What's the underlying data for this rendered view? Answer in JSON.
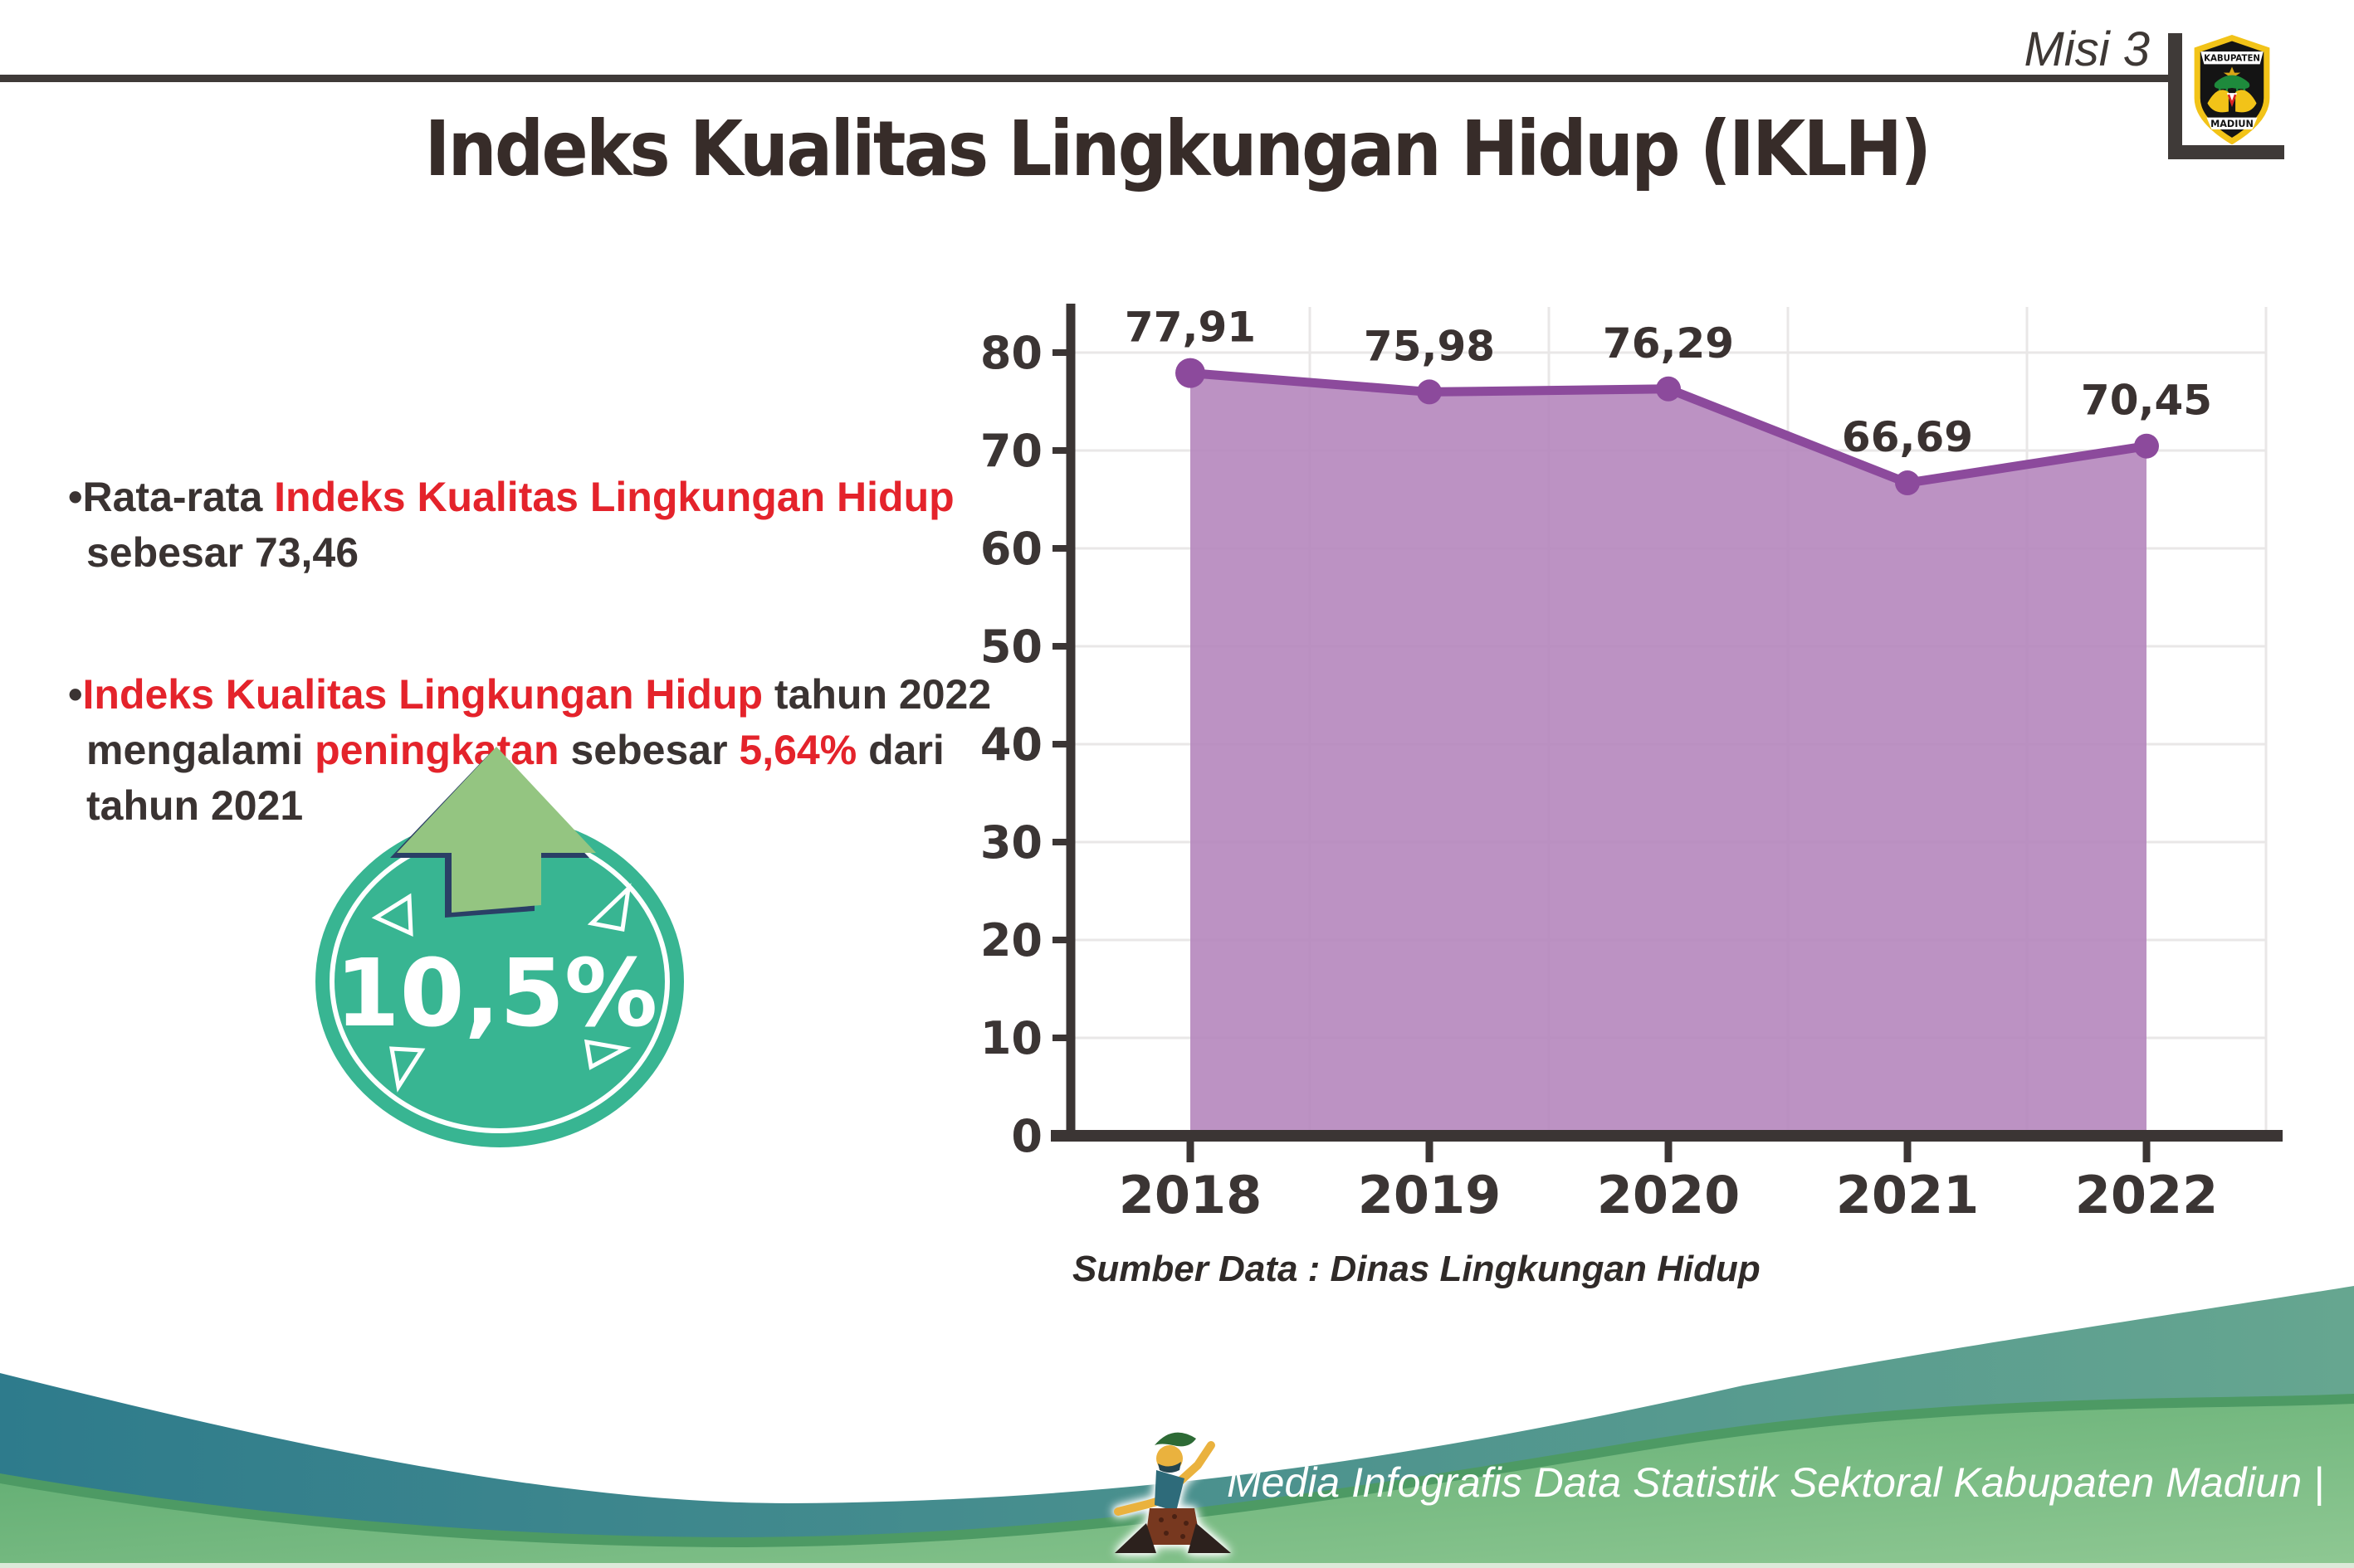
{
  "header": {
    "misi_label": "Misi 3",
    "rule_color": "#3f3a38",
    "logo": {
      "top_text": "KABUPATEN",
      "bottom_text": "MADIUN"
    }
  },
  "title": "Indeks Kualitas Lingkungan Hidup (IKLH)",
  "bullets": [
    {
      "lines": [
        [
          {
            "t": "•Rata-rata ",
            "c": "dark"
          },
          {
            "t": "Indeks Kualitas Lingkungan Hidup",
            "c": "red"
          }
        ],
        [
          {
            "t": "sebesar 73,46",
            "c": "dark"
          }
        ]
      ]
    },
    {
      "lines": [
        [
          {
            "t": "•",
            "c": "dark"
          },
          {
            "t": "Indeks Kualitas Lingkungan Hidup",
            "c": "red"
          },
          {
            "t": " tahun 2022",
            "c": "dark"
          }
        ],
        [
          {
            "t": "mengalami ",
            "c": "dark"
          },
          {
            "t": "peningkatan",
            "c": "red"
          },
          {
            "t": " sebesar ",
            "c": "dark"
          },
          {
            "t": "5,64%",
            "c": "red"
          },
          {
            "t": " dari",
            "c": "dark"
          }
        ],
        [
          {
            "t": "tahun 2021",
            "c": "dark"
          }
        ]
      ]
    }
  ],
  "badge": {
    "value": "10,5%",
    "circle_color": "#38b592",
    "ring_color": "#ffffff",
    "arrow_color": "#94c581",
    "arrow_outline_color": "#2a3f66",
    "text_color": "#ffffff"
  },
  "chart_data": {
    "type": "area",
    "categories": [
      "2018",
      "2019",
      "2020",
      "2021",
      "2022"
    ],
    "values": [
      77.91,
      75.98,
      76.29,
      66.69,
      70.45
    ],
    "point_labels": [
      "77,91",
      "75,98",
      "76,29",
      "66,69",
      "70,45"
    ],
    "title": "",
    "xlabel": "",
    "ylabel": "",
    "ylim": [
      0,
      80
    ],
    "ytick_step": 10,
    "yticks": [
      0,
      10,
      20,
      30,
      40,
      50,
      60,
      70,
      80
    ],
    "grid": true,
    "legend": "none",
    "line_color": "#8c4a9c",
    "fill_color": "#b586bd",
    "axis_color": "#3b3534",
    "grid_color": "#e9e7e7",
    "label_color": "#3a3231",
    "source_note": "Sumber Data : Dinas Lingkungan Hidup"
  },
  "footer": {
    "credit": "Media Infografis Data Statistik Sektoral Kabupaten Madiun |",
    "wave_teal": [
      "#2e7b8c",
      "#66a690"
    ],
    "wave_green": [
      "#5aa96d",
      "#8fc893"
    ],
    "wave_edge": "#4d9a64"
  }
}
